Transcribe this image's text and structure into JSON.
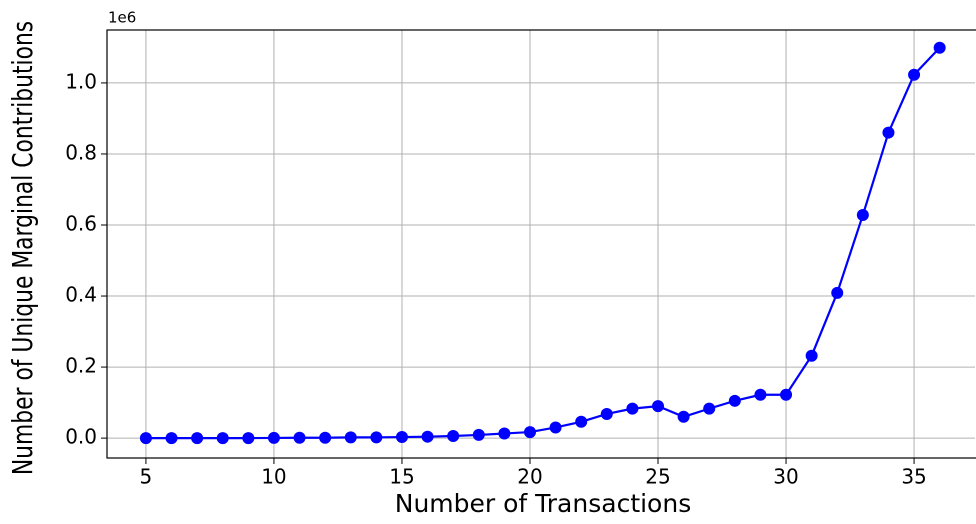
{
  "chart_data": {
    "type": "line",
    "x_label": "Number of Transactions",
    "y_label": "Number of Unique Marginal Contributions",
    "y_offset_label": "1e6",
    "x": [
      5,
      6,
      7,
      8,
      9,
      10,
      11,
      12,
      13,
      14,
      15,
      16,
      17,
      18,
      19,
      20,
      21,
      22,
      23,
      24,
      25,
      26,
      27,
      28,
      29,
      30,
      31,
      32,
      33,
      34,
      35,
      36
    ],
    "series": [
      {
        "color": "#0000ff",
        "values": [
          0,
          0,
          0,
          0,
          0,
          0.0005,
          0.001,
          0.001,
          0.002,
          0.002,
          0.003,
          0.004,
          0.006,
          0.009,
          0.013,
          0.017,
          0.03,
          0.046,
          0.068,
          0.083,
          0.09,
          0.06,
          0.083,
          0.105,
          0.122,
          0.122,
          0.232,
          0.409,
          0.628,
          0.86,
          1.023,
          1.099
        ]
      }
    ],
    "xlim": [
      3.48,
      37.38
    ],
    "ylim": [
      -0.056,
      1.149
    ],
    "xticks": [
      5,
      10,
      15,
      20,
      25,
      30,
      35
    ],
    "yticks": [
      {
        "value": 0,
        "label": "0.0"
      },
      0.2,
      0.4,
      0.6,
      0.8,
      {
        "value": 1,
        "label": "1.0"
      }
    ],
    "grid": true
  }
}
